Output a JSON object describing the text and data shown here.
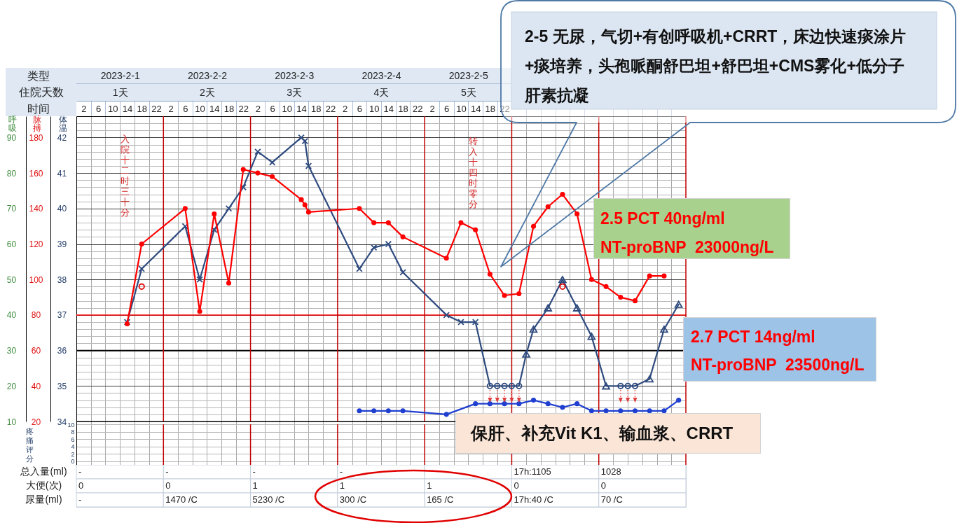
{
  "chart_data": [
    {
      "type": "line",
      "xlabel": "时间",
      "x2label": "类型",
      "ylabel": "体温",
      "y2label": "脉搏",
      "y3label": "呼吸",
      "xlim": [
        "2023-02-01T00:00",
        "2023-02-08T00:00"
      ],
      "xticks": [
        {
          "value": "2023-02-01T02:00",
          "label": "2"
        },
        {
          "value": "2023-02-01T04:00",
          "label": null
        },
        {
          "value": "2023-02-01T06:00",
          "label": "6"
        },
        {
          "value": "2023-02-01T08:00",
          "label": null
        },
        {
          "value": "2023-02-01T10:00",
          "label": "10"
        },
        {
          "value": "2023-02-01T12:00",
          "label": null
        },
        {
          "value": "2023-02-01T14:00",
          "label": "14"
        },
        {
          "value": "2023-02-01T16:00",
          "label": null
        },
        {
          "value": "2023-02-01T18:00",
          "label": "18"
        },
        {
          "value": "2023-02-01T20:00",
          "label": null
        },
        {
          "value": "2023-02-01T22:00",
          "label": "22"
        },
        {
          "value": "2023-02-02T02:00",
          "label": "2"
        },
        {
          "value": "2023-02-02T04:00",
          "label": null
        },
        {
          "value": "2023-02-02T06:00",
          "label": "6"
        },
        {
          "value": "2023-02-02T08:00",
          "label": null
        },
        {
          "value": "2023-02-02T10:00",
          "label": "10"
        },
        {
          "value": "2023-02-02T12:00",
          "label": null
        },
        {
          "value": "2023-02-02T14:00",
          "label": "14"
        },
        {
          "value": "2023-02-02T16:00",
          "label": null
        },
        {
          "value": "2023-02-02T18:00",
          "label": "18"
        },
        {
          "value": "2023-02-02T20:00",
          "label": null
        },
        {
          "value": "2023-02-02T22:00",
          "label": "22"
        },
        {
          "value": "2023-02-03T02:00",
          "label": "2"
        },
        {
          "value": "2023-02-03T04:00",
          "label": null
        },
        {
          "value": "2023-02-03T06:00",
          "label": "6"
        },
        {
          "value": "2023-02-03T08:00",
          "label": null
        },
        {
          "value": "2023-02-03T10:00",
          "label": "10"
        },
        {
          "value": "2023-02-03T12:00",
          "label": null
        },
        {
          "value": "2023-02-03T14:00",
          "label": "14"
        },
        {
          "value": "2023-02-03T16:00",
          "label": null
        },
        {
          "value": "2023-02-03T18:00",
          "label": "18"
        },
        {
          "value": "2023-02-03T20:00",
          "label": null
        },
        {
          "value": "2023-02-03T22:00",
          "label": "22"
        },
        {
          "value": "2023-02-04T02:00",
          "label": "2"
        },
        {
          "value": "2023-02-04T04:00",
          "label": null
        },
        {
          "value": "2023-02-04T06:00",
          "label": "6"
        },
        {
          "value": "2023-02-04T08:00",
          "label": null
        },
        {
          "value": "2023-02-04T10:00",
          "label": "10"
        },
        {
          "value": "2023-02-04T12:00",
          "label": null
        },
        {
          "value": "2023-02-04T14:00",
          "label": "14"
        },
        {
          "value": "2023-02-04T16:00",
          "label": null
        },
        {
          "value": "2023-02-04T18:00",
          "label": "18"
        },
        {
          "value": "2023-02-04T20:00",
          "label": null
        },
        {
          "value": "2023-02-04T22:00",
          "label": "22"
        },
        {
          "value": "2023-02-05T02:00",
          "label": "2"
        },
        {
          "value": "2023-02-05T04:00",
          "label": null
        },
        {
          "value": "2023-02-05T06:00",
          "label": "6"
        },
        {
          "value": "2023-02-05T08:00",
          "label": null
        },
        {
          "value": "2023-02-05T10:00",
          "label": "10"
        },
        {
          "value": "2023-02-05T12:00",
          "label": null
        },
        {
          "value": "2023-02-05T14:00",
          "label": "14"
        },
        {
          "value": "2023-02-05T16:00",
          "label": null
        },
        {
          "value": "2023-02-05T18:00",
          "label": "18"
        },
        {
          "value": "2023-02-05T20:00",
          "label": null
        },
        {
          "value": "2023-02-05T22:00",
          "label": "22"
        },
        {
          "value": "2023-02-06T04:00",
          "label": null
        },
        {
          "value": "2023-02-06T08:00",
          "label": null
        },
        {
          "value": "2023-02-06T12:00",
          "label": null
        },
        {
          "value": "2023-02-06T16:00",
          "label": null
        },
        {
          "value": "2023-02-06T20:00",
          "label": null
        },
        {
          "value": "2023-02-07T04:00",
          "label": null
        },
        {
          "value": "2023-02-07T08:00",
          "label": null
        },
        {
          "value": "2023-02-07T12:00",
          "label": null
        },
        {
          "value": "2023-02-07T16:00",
          "label": null
        },
        {
          "value": "2023-02-07T20:00",
          "label": null
        }
      ],
      "x2lim": [
        "2023-02-01T00:00",
        "2023-02-08T00:00"
      ],
      "x2ticks": [
        {
          "value": "2023-02-01T12:00",
          "label": "2023-2-1\n1天"
        },
        {
          "value": "2023-02-02T12:00",
          "label": "2023-2-2\n2天"
        },
        {
          "value": "2023-02-03T12:00",
          "label": "2023-2-3\n3天"
        },
        {
          "value": "2023-02-04T12:00",
          "label": "2023-2-4\n4天"
        },
        {
          "value": "2023-02-05T12:00",
          "label": "2023-2-5\n5天"
        }
      ],
      "ylim": [
        34,
        42.6
      ],
      "yticks": [
        34,
        {
          "value": 34.2,
          "label": null
        },
        {
          "value": 34.4,
          "label": null
        },
        {
          "value": 34.6,
          "label": null
        },
        {
          "value": 34.8,
          "label": null
        },
        35,
        {
          "value": 35.2,
          "label": null
        },
        {
          "value": 35.4,
          "label": null
        },
        {
          "value": 35.6,
          "label": null
        },
        {
          "value": 35.8,
          "label": null
        },
        36,
        {
          "value": 36.2,
          "label": null
        },
        {
          "value": 36.4,
          "label": null
        },
        {
          "value": 36.6,
          "label": null
        },
        {
          "value": 36.8,
          "label": null
        },
        37,
        {
          "value": 37.2,
          "label": null
        },
        {
          "value": 37.4,
          "label": null
        },
        {
          "value": 37.6,
          "label": null
        },
        {
          "value": 37.8,
          "label": null
        },
        38,
        {
          "value": 38.2,
          "label": null
        },
        {
          "value": 38.4,
          "label": null
        },
        {
          "value": 38.6,
          "label": null
        },
        {
          "value": 38.8,
          "label": null
        },
        39,
        {
          "value": 39.2,
          "label": null
        },
        {
          "value": 39.4,
          "label": null
        },
        {
          "value": 39.6,
          "label": null
        },
        {
          "value": 39.8,
          "label": null
        },
        40,
        {
          "value": 40.2,
          "label": null
        },
        {
          "value": 40.4,
          "label": null
        },
        {
          "value": 40.6,
          "label": null
        },
        {
          "value": 40.8,
          "label": null
        },
        41,
        {
          "value": 41.2,
          "label": null
        },
        {
          "value": 41.4,
          "label": null
        },
        {
          "value": 41.6,
          "label": null
        },
        {
          "value": 41.8,
          "label": null
        },
        42,
        {
          "value": 42.2,
          "label": null
        },
        {
          "value": 42.4,
          "label": null
        }
      ],
      "y2lim": [
        20,
        192
      ],
      "y2ticks": [
        20,
        40,
        60,
        80,
        100,
        120,
        140,
        160,
        180
      ],
      "y3lim": [
        10,
        96
      ],
      "y3ticks": [
        10,
        20,
        30,
        40,
        50,
        60,
        70,
        80,
        90
      ],
      "grid": true,
      "ref_lines": [
        {
          "axis": "y",
          "value": 37,
          "color": "#ff0000"
        },
        {
          "axis": "y",
          "value": 36,
          "color": "#000000"
        },
        {
          "axis": "x2",
          "value": "2023-02-02T00:00",
          "color": "#c00000"
        },
        {
          "axis": "x2",
          "value": "2023-02-03T00:00",
          "color": "#c00000"
        },
        {
          "axis": "x2",
          "value": "2023-02-04T00:00",
          "color": "#c00000"
        },
        {
          "axis": "x2",
          "value": "2023-02-05T00:00",
          "color": "#c00000"
        },
        {
          "axis": "x2",
          "value": "2023-02-06T00:00",
          "color": "#c00000"
        },
        {
          "axis": "x2",
          "value": "2023-02-07T00:00",
          "color": "#c00000"
        },
        {
          "axis": "x2",
          "value": "2023-02-08T00:00",
          "color": "#c00000"
        }
      ],
      "annotations": [
        "入院十二时三十分",
        "转入十四时零分",
        "2-5 无尿，气切+有创呼吸机+CRRT，床边快速痰涂片+痰培养，头孢哌酮舒巴坦+舒巴坦+CMS雾化+低分子肝素抗凝",
        "2.5 PCT 40ng/ml\nNT-proBNP  23000ng/L",
        "2.7 PCT 14ng/ml\nNT-proBNP  23500ng/L",
        "保肝、补充Vit K1、输血浆、CRRT",
        "住院天数"
      ],
      "series": [
        {
          "type": "line",
          "color": "#2e4a7e",
          "marker": "none",
          "axis": "y",
          "x": [
            "2023-02-01T14:00",
            "2023-02-01T18:00",
            "2023-02-02T06:00",
            "2023-02-02T10:00",
            "2023-02-02T14:00",
            "2023-02-02T18:00",
            "2023-02-02T22:00",
            "2023-02-03T02:00",
            "2023-02-03T06:00",
            "2023-02-03T14:00",
            "2023-02-03T15:00",
            "2023-02-03T16:00",
            "2023-02-04T06:00",
            "2023-02-04T10:00",
            "2023-02-04T14:00",
            "2023-02-04T18:00",
            "2023-02-05T06:00",
            "2023-02-05T10:00",
            "2023-02-05T14:00",
            "2023-02-05T18:00",
            "2023-02-05T20:00",
            "2023-02-05T22:00",
            "2023-02-06T00:00",
            "2023-02-06T02:00",
            "2023-02-06T04:00",
            "2023-02-06T06:00",
            "2023-02-06T10:00",
            "2023-02-06T14:00",
            "2023-02-06T18:00",
            "2023-02-06T22:00",
            "2023-02-07T02:00",
            "2023-02-07T06:00",
            "2023-02-07T08:00",
            "2023-02-07T10:00",
            "2023-02-07T14:00",
            "2023-02-07T18:00",
            "2023-02-07T22:00"
          ],
          "values": [
            36.8,
            38.3,
            39.5,
            38.0,
            39.4,
            40.0,
            40.6,
            41.6,
            41.3,
            42.0,
            41.9,
            41.2,
            38.3,
            38.9,
            39.0,
            38.2,
            37.0,
            36.8,
            36.8,
            35.0,
            35.0,
            35.0,
            35.0,
            35.0,
            35.9,
            36.6,
            37.2,
            38.0,
            37.2,
            36.4,
            35.0,
            35.0,
            35.0,
            35.0,
            35.2,
            36.6,
            37.3
          ]
        },
        {
          "type": "scatter",
          "color": "#2e4a7e",
          "marker": "cross",
          "axis": "y",
          "x": [
            "2023-02-01T14:00",
            "2023-02-01T18:00",
            "2023-02-02T06:00",
            "2023-02-02T10:00",
            "2023-02-02T14:00",
            "2023-02-02T18:00",
            "2023-02-02T22:00",
            "2023-02-03T02:00",
            "2023-02-03T06:00",
            "2023-02-03T14:00",
            "2023-02-03T15:00",
            "2023-02-03T16:00",
            "2023-02-04T06:00",
            "2023-02-04T10:00",
            "2023-02-04T14:00",
            "2023-02-04T18:00",
            "2023-02-05T06:00",
            "2023-02-05T10:00",
            "2023-02-05T14:00"
          ],
          "values": [
            36.8,
            38.3,
            39.5,
            38.0,
            39.4,
            40.0,
            40.6,
            41.6,
            41.3,
            42.0,
            41.9,
            41.2,
            38.3,
            38.9,
            39.0,
            38.2,
            37.0,
            36.8,
            36.8
          ]
        },
        {
          "type": "scatter",
          "color": "#2e4a7e",
          "marker": "circle",
          "axis": "y",
          "x": [
            "2023-02-05T18:00",
            "2023-02-05T20:00",
            "2023-02-05T22:00",
            "2023-02-06T00:00",
            "2023-02-06T02:00",
            "2023-02-07T06:00",
            "2023-02-07T08:00",
            "2023-02-07T10:00"
          ],
          "values": [
            35.0,
            35.0,
            35.0,
            35.0,
            35.0,
            35.0,
            35.0,
            35.0
          ]
        },
        {
          "type": "scatter",
          "color": "#2e4a7e",
          "marker": "triangle",
          "axis": "y",
          "x": [
            "2023-02-06T04:00",
            "2023-02-06T06:00",
            "2023-02-06T10:00",
            "2023-02-06T14:00",
            "2023-02-06T18:00",
            "2023-02-06T22:00",
            "2023-02-07T02:00",
            "2023-02-07T14:00",
            "2023-02-07T18:00",
            "2023-02-07T22:00"
          ],
          "values": [
            35.9,
            36.6,
            37.2,
            38.0,
            37.2,
            36.4,
            35.0,
            35.2,
            36.6,
            37.3
          ]
        },
        {
          "type": "scatter",
          "color": "#e00000",
          "marker": "circle",
          "axis": "y",
          "x": [
            "2023-02-01T18:00",
            "2023-02-06T14:00"
          ],
          "values": [
            37.8,
            37.8
          ]
        },
        {
          "type": "line",
          "color": "#ff0000",
          "marker": "circle",
          "axis": "y2",
          "x": [
            "2023-02-01T14:00",
            "2023-02-01T18:00",
            "2023-02-02T06:00",
            "2023-02-02T10:00",
            "2023-02-02T14:00",
            "2023-02-02T18:00",
            "2023-02-02T22:00",
            "2023-02-03T02:00",
            "2023-02-03T06:00",
            "2023-02-03T14:00",
            "2023-02-03T15:00",
            "2023-02-03T16:00",
            "2023-02-04T06:00",
            "2023-02-04T10:00",
            "2023-02-04T14:00",
            "2023-02-04T18:00",
            "2023-02-05T06:00",
            "2023-02-05T10:00",
            "2023-02-05T14:00",
            "2023-02-05T18:00",
            "2023-02-05T22:00",
            "2023-02-06T02:00",
            "2023-02-06T06:00",
            "2023-02-06T10:00",
            "2023-02-06T14:00",
            "2023-02-06T18:00",
            "2023-02-06T22:00",
            "2023-02-07T02:00",
            "2023-02-07T06:00",
            "2023-02-07T10:00",
            "2023-02-07T14:00",
            "2023-02-07T18:00"
          ],
          "values": [
            75,
            120,
            140,
            82,
            137,
            98,
            162,
            160,
            158,
            145,
            142,
            138,
            140,
            132,
            132,
            124,
            112,
            132,
            128,
            103,
            91,
            92,
            130,
            141,
            148,
            137,
            100,
            96,
            90,
            88,
            102,
            102
          ]
        },
        {
          "type": "line",
          "color": "#1f3fd0",
          "marker": "circle",
          "axis": "y3",
          "x": [
            "2023-02-04T06:00",
            "2023-02-04T10:00",
            "2023-02-04T14:00",
            "2023-02-04T18:00",
            "2023-02-05T06:00",
            "2023-02-05T14:00",
            "2023-02-05T18:00",
            "2023-02-05T22:00",
            "2023-02-06T02:00",
            "2023-02-06T06:00",
            "2023-02-06T10:00",
            "2023-02-06T14:00",
            "2023-02-06T18:00",
            "2023-02-06T22:00",
            "2023-02-07T02:00",
            "2023-02-07T06:00",
            "2023-02-07T10:00",
            "2023-02-07T14:00",
            "2023-02-07T18:00",
            "2023-02-07T22:00"
          ],
          "values": [
            13,
            13,
            13,
            13,
            12,
            15,
            15,
            15,
            15,
            16,
            15,
            14,
            15,
            13,
            13,
            13,
            13,
            13,
            13,
            16
          ]
        }
      ]
    },
    {
      "type": "line",
      "ylabel": "疼痛评分",
      "xlim": [
        "2023-02-01T00:00",
        "2023-02-08T00:00"
      ],
      "xticks": [
        {
          "value": "2023-02-01T04:00",
          "label": null
        },
        {
          "value": "2023-02-01T08:00",
          "label": null
        },
        {
          "value": "2023-02-01T12:00",
          "label": null
        },
        {
          "value": "2023-02-01T16:00",
          "label": null
        },
        {
          "value": "2023-02-01T20:00",
          "label": null
        },
        {
          "value": "2023-02-02T04:00",
          "label": null
        },
        {
          "value": "2023-02-02T08:00",
          "label": null
        },
        {
          "value": "2023-02-02T12:00",
          "label": null
        },
        {
          "value": "2023-02-02T16:00",
          "label": null
        },
        {
          "value": "2023-02-02T20:00",
          "label": null
        },
        {
          "value": "2023-02-03T04:00",
          "label": null
        },
        {
          "value": "2023-02-03T08:00",
          "label": null
        },
        {
          "value": "2023-02-03T12:00",
          "label": null
        },
        {
          "value": "2023-02-03T16:00",
          "label": null
        },
        {
          "value": "2023-02-03T20:00",
          "label": null
        },
        {
          "value": "2023-02-04T04:00",
          "label": null
        },
        {
          "value": "2023-02-04T08:00",
          "label": null
        },
        {
          "value": "2023-02-04T12:00",
          "label": null
        },
        {
          "value": "2023-02-04T16:00",
          "label": null
        },
        {
          "value": "2023-02-04T20:00",
          "label": null
        },
        {
          "value": "2023-02-05T04:00",
          "label": null
        },
        {
          "value": "2023-02-05T08:00",
          "label": null
        },
        {
          "value": "2023-02-05T12:00",
          "label": null
        },
        {
          "value": "2023-02-05T16:00",
          "label": null
        },
        {
          "value": "2023-02-05T20:00",
          "label": null
        },
        {
          "value": "2023-02-06T04:00",
          "label": null
        },
        {
          "value": "2023-02-06T08:00",
          "label": null
        },
        {
          "value": "2023-02-06T12:00",
          "label": null
        },
        {
          "value": "2023-02-06T16:00",
          "label": null
        },
        {
          "value": "2023-02-06T20:00",
          "label": null
        },
        {
          "value": "2023-02-07T04:00",
          "label": null
        },
        {
          "value": "2023-02-07T08:00",
          "label": null
        },
        {
          "value": "2023-02-07T12:00",
          "label": null
        },
        {
          "value": "2023-02-07T16:00",
          "label": null
        },
        {
          "value": "2023-02-07T20:00",
          "label": null
        }
      ],
      "ylim": [
        -1.2,
        10.8
      ],
      "yticks": [
        0,
        2,
        4,
        6,
        8,
        10
      ],
      "grid": true,
      "tick_labels": "y",
      "ref_lines": [
        {
          "axis": "x",
          "value": "2023-02-02T00:00",
          "color": "#c00000"
        },
        {
          "axis": "x",
          "value": "2023-02-03T00:00",
          "color": "#c00000"
        },
        {
          "axis": "x",
          "value": "2023-02-04T00:00",
          "color": "#c00000"
        },
        {
          "axis": "x",
          "value": "2023-02-05T00:00",
          "color": "#c00000"
        },
        {
          "axis": "x",
          "value": "2023-02-06T00:00",
          "color": "#c00000"
        },
        {
          "axis": "x",
          "value": "2023-02-07T00:00",
          "color": "#c00000"
        },
        {
          "axis": "x",
          "value": "2023-02-08T00:00",
          "color": "#c00000"
        }
      ]
    },
    {
      "type": "heatmap",
      "categories": [
        null,
        null,
        null,
        null,
        null,
        null,
        null
      ],
      "y_categories": [
        "总入量(ml)",
        "大便(次)",
        "尿量(ml)"
      ],
      "cells": [
        [
          null,
          null,
          null,
          null,
          null,
          null,
          null
        ],
        [
          null,
          null,
          null,
          null,
          null,
          null,
          null
        ],
        [
          null,
          null,
          null,
          null,
          null,
          null,
          null
        ]
      ],
      "cell_labels": [
        [
          "-",
          "-",
          "-",
          "-",
          null,
          "17h:1105",
          "1028"
        ],
        [
          "0",
          "0",
          "1",
          "1",
          "1",
          "0",
          "0"
        ],
        [
          "-",
          "1470 /C",
          "5230 /C",
          "300 /C",
          "165 /C",
          "17h:40 /C",
          "70 /C"
        ]
      ]
    }
  ]
}
